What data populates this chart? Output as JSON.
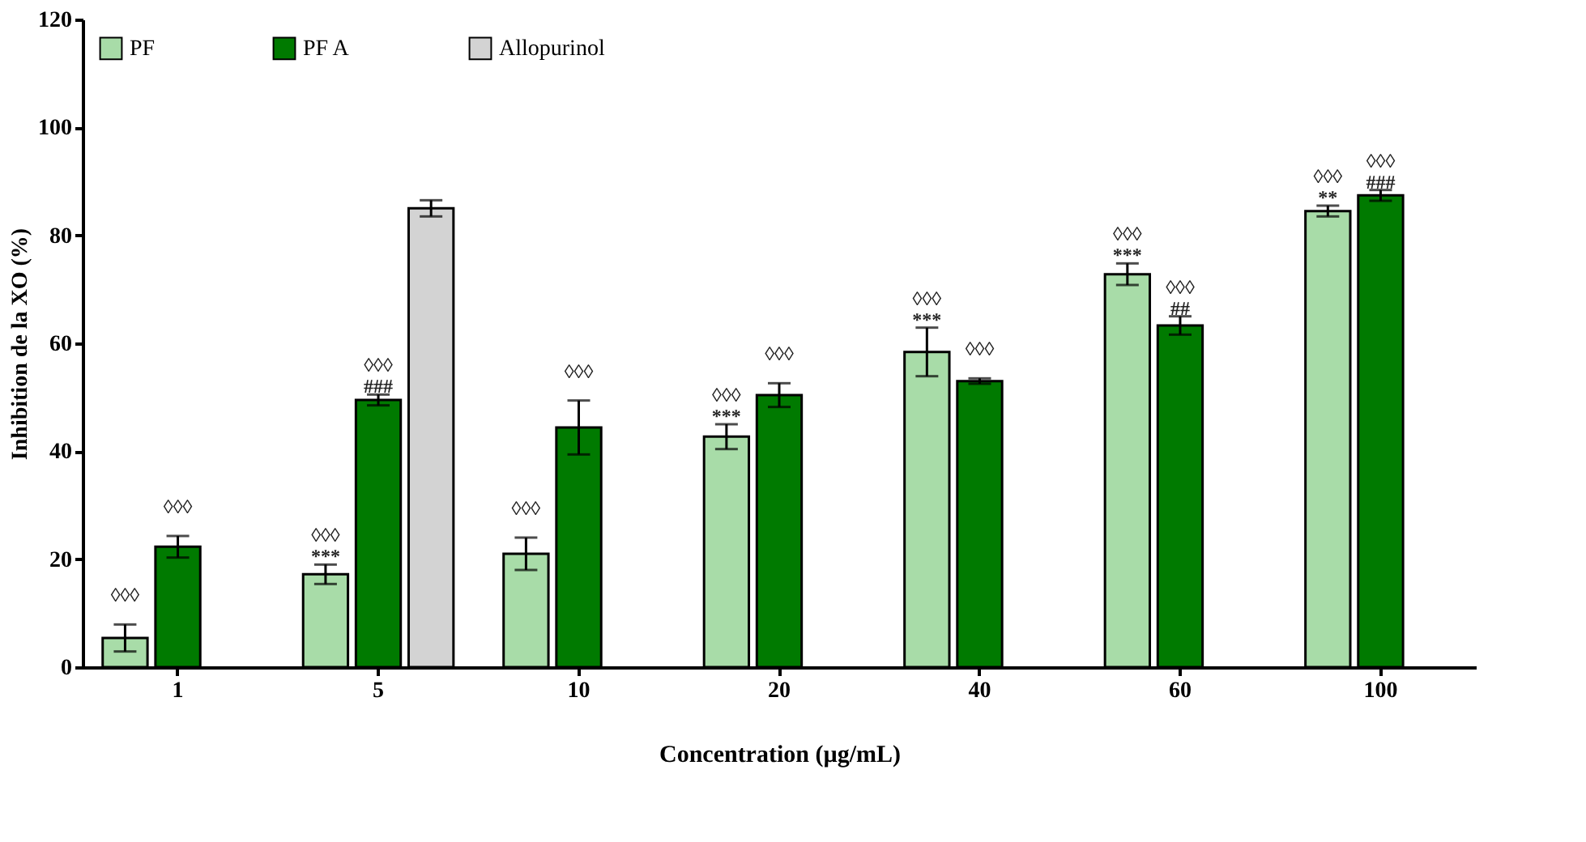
{
  "chart_data": {
    "type": "bar",
    "xlabel": "Concentration (µg/mL)",
    "ylabel": "Inhibition de la XO (%)",
    "categories": [
      "1",
      "5",
      "10",
      "20",
      "40",
      "60",
      "100"
    ],
    "series": [
      {
        "name": "PF",
        "color": "#a8dca8",
        "values": [
          5.4,
          17.2,
          21,
          42.7,
          58.4,
          72.8,
          84.5
        ],
        "errors": [
          2.5,
          1.8,
          3,
          2.3,
          4.5,
          2,
          1
        ],
        "value_labels": [
          "◊◊◊",
          "◊◊◊\n***",
          "◊◊◊",
          "◊◊◊\n***",
          "◊◊◊\n***",
          "◊◊◊\n***",
          "◊◊◊\n**"
        ]
      },
      {
        "name": "PF A",
        "color": "#007a00",
        "values": [
          22.3,
          49.5,
          44.4,
          50.4,
          53,
          63.3,
          87.4
        ],
        "errors": [
          2,
          1,
          5,
          2.2,
          0.5,
          1.7,
          1
        ],
        "value_labels": [
          "◊◊◊",
          "◊◊◊\n###",
          "◊◊◊",
          "◊◊◊",
          "◊◊◊",
          "◊◊◊\n##",
          "◊◊◊\n###"
        ]
      },
      {
        "name": "Allopurinol",
        "color": "#d3d3d3",
        "values": [
          null,
          85,
          null,
          null,
          null,
          null,
          null
        ],
        "errors": [
          null,
          1.5,
          null,
          null,
          null,
          null,
          null
        ]
      }
    ],
    "ylim": [
      0,
      120
    ],
    "yticks": [
      0,
      20,
      40,
      60,
      80,
      100,
      120
    ],
    "grid": false,
    "legend": "top left"
  }
}
